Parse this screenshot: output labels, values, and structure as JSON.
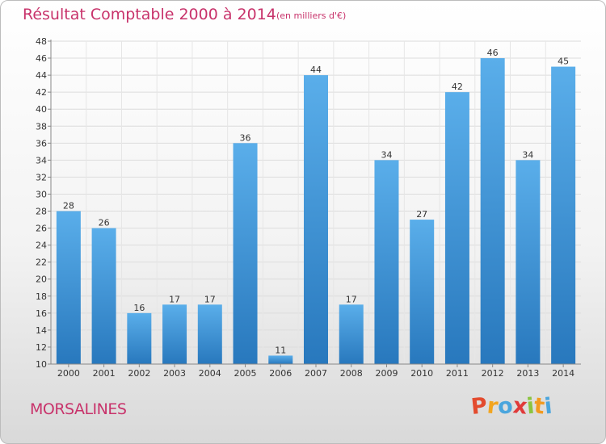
{
  "chart_data": {
    "type": "bar",
    "title": "Résultat Comptable 2000 à 2014",
    "subtitle": "(en milliers d'€)",
    "categories": [
      "2000",
      "2001",
      "2002",
      "2003",
      "2004",
      "2005",
      "2006",
      "2007",
      "2008",
      "2009",
      "2010",
      "2011",
      "2012",
      "2013",
      "2014"
    ],
    "values": [
      28,
      26,
      16,
      17,
      17,
      36,
      11,
      44,
      17,
      34,
      27,
      42,
      46,
      34,
      45
    ],
    "ylim": [
      10,
      48
    ],
    "yticks": [
      10,
      12,
      14,
      16,
      18,
      20,
      22,
      24,
      26,
      28,
      30,
      32,
      34,
      36,
      38,
      40,
      42,
      44,
      46,
      48
    ],
    "xlabel": "",
    "ylabel": "",
    "grid": true,
    "bar_color": "#3d94d6"
  },
  "footer": {
    "town": "MORSALINES",
    "logo": {
      "letters": [
        "P",
        "r",
        "o",
        "x",
        "i",
        "t",
        "i"
      ],
      "colors": [
        "#e34b2e",
        "#f2a51f",
        "#4aa5dd",
        "#e03a3a",
        "#8bc43f",
        "#f29a1f",
        "#4aa5dd"
      ]
    }
  }
}
